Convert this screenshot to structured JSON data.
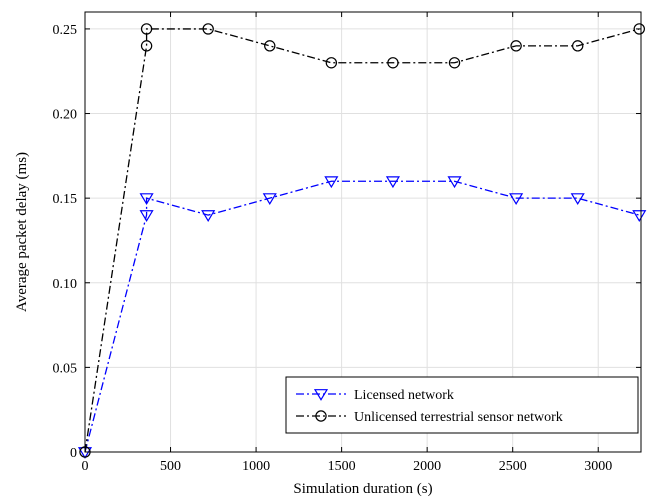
{
  "chart_data": {
    "type": "line",
    "title": "",
    "xlabel": "Simulation duration (s)",
    "ylabel": "Average packet delay (ms)",
    "xlim": [
      0,
      3250
    ],
    "ylim": [
      0,
      0.26
    ],
    "xticks": [
      0,
      500,
      1000,
      1500,
      2000,
      2500,
      3000
    ],
    "xtick_labels": [
      "0",
      "500",
      "1000",
      "1500",
      "2000",
      "2500",
      "3000"
    ],
    "yticks": [
      0,
      0.05,
      0.1,
      0.15,
      0.2,
      0.25
    ],
    "ytick_labels": [
      "0",
      "0.05",
      "0.10",
      "0.15",
      "0.20",
      "0.25"
    ],
    "grid": true,
    "legend_position": "bottom-right",
    "series": [
      {
        "name": "Licensed network",
        "color": "#0000ff",
        "marker": "triangle-down",
        "line_style": "dash-dot",
        "x": [
          0,
          360,
          360,
          720,
          1080,
          1440,
          1800,
          2160,
          2520,
          2880,
          3240
        ],
        "y": [
          0,
          0.14,
          0.15,
          0.14,
          0.15,
          0.16,
          0.16,
          0.16,
          0.15,
          0.15,
          0.14
        ]
      },
      {
        "name": "Unlicensed terrestrial sensor network",
        "color": "#000000",
        "marker": "circle",
        "line_style": "dash-dot",
        "x": [
          0,
          360,
          360,
          720,
          1080,
          1440,
          1800,
          2160,
          2520,
          2880,
          3240
        ],
        "y": [
          0,
          0.24,
          0.25,
          0.25,
          0.24,
          0.23,
          0.23,
          0.23,
          0.24,
          0.24,
          0.25
        ]
      }
    ]
  }
}
